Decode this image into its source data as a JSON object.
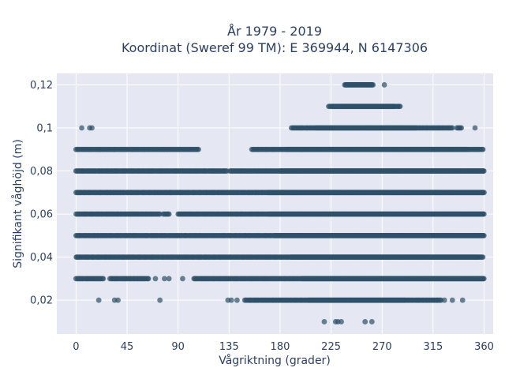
{
  "chart_data": {
    "type": "scatter",
    "title_line1": "År 1979 - 2019",
    "title_line2": "Koordinat (Sweref 99 TM): E 369944, N 6147306",
    "xlabel": "Vågriktning (grader)",
    "ylabel": "Signifikant våghöjd (m)",
    "xlim": [
      -17,
      368
    ],
    "ylim": [
      0.0043,
      0.1253
    ],
    "x_ticks": [
      0,
      45,
      90,
      135,
      180,
      225,
      270,
      315,
      360
    ],
    "x_tick_labels": [
      "0",
      "45",
      "90",
      "135",
      "180",
      "225",
      "270",
      "315",
      "360"
    ],
    "y_ticks": [
      0.02,
      0.04,
      0.06,
      0.08,
      0.1,
      0.12
    ],
    "y_tick_labels": [
      "0,02",
      "0,04",
      "0,06",
      "0,08",
      "0,1",
      "0,12"
    ],
    "grid": true,
    "marker_color": "#2e5068",
    "background": "#e5e8f2",
    "series": [
      {
        "bands": [
          {
            "y": 0.12,
            "segments": [
              [
                237,
                262
              ]
            ],
            "dense": [
              [
                238,
                261
              ]
            ],
            "points": [
              272
            ]
          },
          {
            "y": 0.11,
            "segments": [
              [
                223,
                286
              ]
            ],
            "dense": [
              [
                226,
                280
              ]
            ],
            "points": []
          },
          {
            "y": 0.1,
            "segments": [
              [
                191,
                332
              ],
              [
                336,
                340
              ]
            ],
            "dense": [
              [
                212,
                300
              ]
            ],
            "points": [
              5,
              12,
              14,
              190,
              352
            ]
          },
          {
            "y": 0.09,
            "segments": [
              [
                0,
                108
              ],
              [
                155,
                359
              ]
            ],
            "dense": [
              [
                185,
                345
              ]
            ],
            "points": []
          },
          {
            "y": 0.08,
            "segments": [
              [
                0,
                133
              ],
              [
                136,
                360
              ]
            ],
            "dense": [
              [
                180,
                359
              ]
            ],
            "points": []
          },
          {
            "y": 0.07,
            "segments": [
              [
                0,
                360
              ]
            ],
            "dense": [
              [
                170,
                359
              ]
            ],
            "points": []
          },
          {
            "y": 0.06,
            "segments": [
              [
                0,
                74
              ],
              [
                77,
                82
              ],
              [
                90,
                360
              ]
            ],
            "dense": [
              [
                170,
                359
              ]
            ],
            "points": []
          },
          {
            "y": 0.05,
            "segments": [
              [
                0,
                360
              ]
            ],
            "dense": [
              [
                175,
                359
              ]
            ],
            "points": []
          },
          {
            "y": 0.04,
            "segments": [
              [
                0,
                359
              ]
            ],
            "dense": [
              [
                190,
                355
              ]
            ],
            "points": []
          },
          {
            "y": 0.03,
            "segments": [
              [
                0,
                24
              ],
              [
                30,
                64
              ],
              [
                104,
                360
              ]
            ],
            "dense": [
              [
                200,
                359
              ]
            ],
            "points": [
              70,
              78,
              82,
              94
            ]
          },
          {
            "y": 0.02,
            "segments": [
              [
                149,
                322
              ]
            ],
            "dense": [
              [
                205,
                290
              ]
            ],
            "points": [
              20,
              34,
              37,
              74,
              134,
              137,
              142,
              325,
              332,
              341
            ]
          },
          {
            "y": 0.01,
            "segments": [],
            "dense": [],
            "points": [
              219,
              229,
              231,
              234,
              255,
              261
            ]
          }
        ]
      }
    ]
  }
}
